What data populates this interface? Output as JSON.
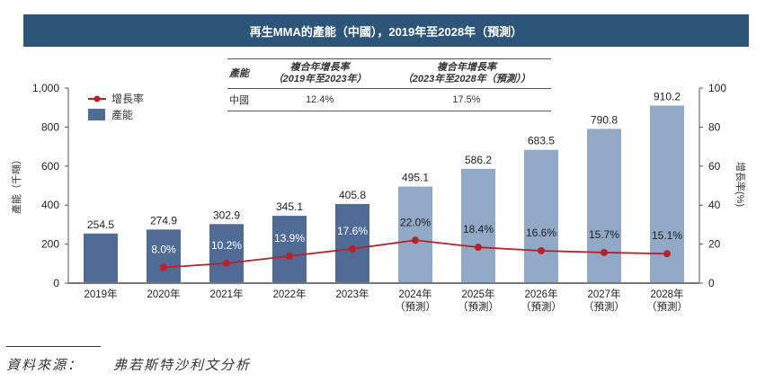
{
  "title": "再生MMA的產能（中國），2019年至2028年（預測）",
  "cagr_table": {
    "headers": [
      "產能",
      "複合年增長率",
      "複合年增長率"
    ],
    "header_sub": [
      "",
      "（2019年至2023年）",
      "（2023年至2028年（預測））"
    ],
    "rows": [
      {
        "region": "中國",
        "cagr_2019_2023": "12.4%",
        "cagr_2023_2028": "17.5%"
      }
    ]
  },
  "source": {
    "label": "資料來源：",
    "value": "弗若斯特沙利文分析"
  },
  "chart_data": {
    "type": "bar",
    "title": "再生MMA的產能（中國），2019年至2028年（預測）",
    "categories": [
      "2019年",
      "2020年",
      "2021年",
      "2022年",
      "2023年",
      "2024年",
      "2025年",
      "2026年",
      "2027年",
      "2028年"
    ],
    "category_sub": [
      "",
      "",
      "",
      "",
      "",
      "（預測）",
      "（預測）",
      "（預測）",
      "（預測）",
      "（預測）"
    ],
    "ylabel": "產能（千噸）",
    "y2label": "增長率(%)",
    "ylim": [
      0,
      1000
    ],
    "y2lim": [
      0,
      100
    ],
    "yticks": [
      "0",
      "200",
      "400",
      "600",
      "800",
      "1,000"
    ],
    "y2ticks": [
      "0",
      "20",
      "40",
      "60",
      "80",
      "100"
    ],
    "legend_position": "top-left",
    "grid": false,
    "series": [
      {
        "name": "產能",
        "type": "bar",
        "axis": "left",
        "values": [
          254.5,
          274.9,
          302.9,
          345.1,
          405.8,
          495.1,
          586.2,
          683.5,
          790.8,
          910.2
        ],
        "labels": [
          "254.5",
          "274.9",
          "302.9",
          "345.1",
          "405.8",
          "495.1",
          "586.2",
          "683.5",
          "790.8",
          "910.2"
        ],
        "color_actual": "#4f6b96",
        "color_forecast": "#91a8c6"
      },
      {
        "name": "增長率",
        "type": "line",
        "axis": "right",
        "values": [
          null,
          8.0,
          10.2,
          13.9,
          17.6,
          22.0,
          18.4,
          16.6,
          15.7,
          15.1
        ],
        "labels": [
          "",
          "8.0%",
          "10.2%",
          "13.9%",
          "17.6%",
          "22.0%",
          "18.4%",
          "16.6%",
          "15.7%",
          "15.1%"
        ],
        "color": "#b8202a"
      }
    ]
  }
}
